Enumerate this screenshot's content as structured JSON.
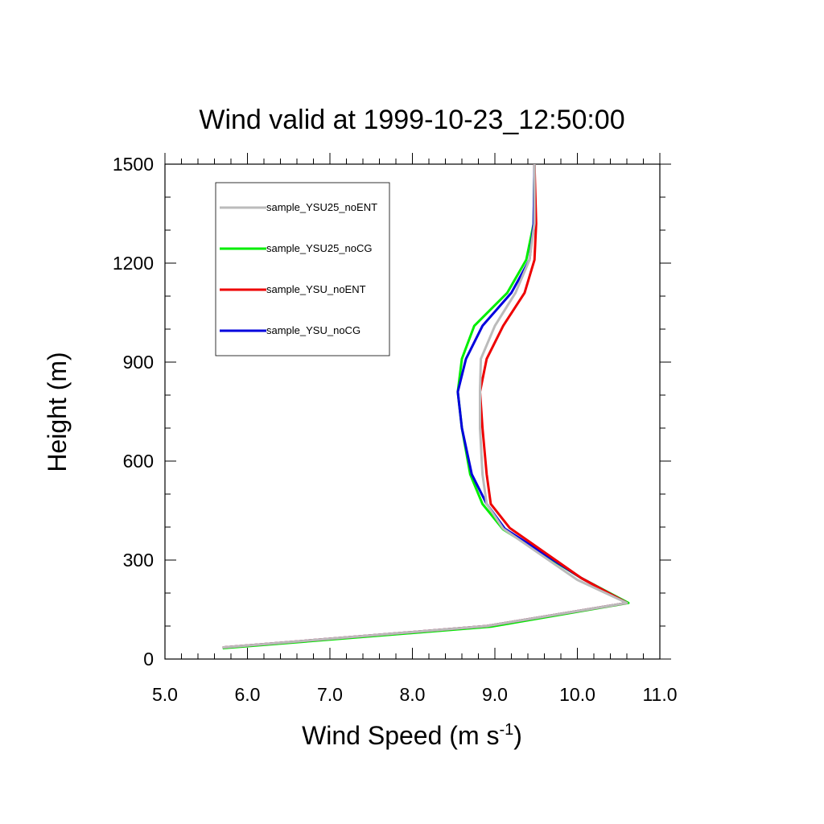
{
  "chart_data": {
    "type": "line",
    "title": "Wind valid at 1999-10-23_12:50:00",
    "xlabel": "Wind Speed (m s",
    "xlabel_superscript": "-1",
    "xlabel_suffix": ")",
    "ylabel": "Height (m)",
    "xlim": [
      5.0,
      11.0
    ],
    "ylim": [
      0,
      1500
    ],
    "x_ticks": [
      {
        "value": 5.0,
        "label": "5.0"
      },
      {
        "value": 6.0,
        "label": "6.0"
      },
      {
        "value": 7.0,
        "label": "7.0"
      },
      {
        "value": 8.0,
        "label": "8.0"
      },
      {
        "value": 9.0,
        "label": "9.0"
      },
      {
        "value": 10.0,
        "label": "10.0"
      },
      {
        "value": 11.0,
        "label": "11.0"
      }
    ],
    "y_ticks": [
      {
        "value": 0,
        "label": "0"
      },
      {
        "value": 300,
        "label": "300"
      },
      {
        "value": 600,
        "label": "600"
      },
      {
        "value": 900,
        "label": "900"
      },
      {
        "value": 1200,
        "label": "1200"
      },
      {
        "value": 1500,
        "label": "1500"
      }
    ],
    "grid": false,
    "legend_position": "top-left",
    "series": [
      {
        "name": "sample_YSU25_noENT",
        "color": "#bbbbbb",
        "x": [
          5.7,
          8.9,
          10.6,
          10.0,
          9.1,
          8.9,
          8.85,
          8.82,
          8.82,
          8.83,
          9.0,
          9.25,
          9.42,
          9.48,
          9.48
        ],
        "y": [
          35,
          100,
          170,
          240,
          395,
          470,
          560,
          700,
          810,
          910,
          1010,
          1110,
          1210,
          1320,
          1500
        ]
      },
      {
        "name": "sample_YSU25_noCG",
        "color": "#00ee00",
        "x": [
          5.7,
          8.95,
          10.62,
          10.05,
          9.1,
          8.85,
          8.7,
          8.6,
          8.55,
          8.6,
          8.75,
          9.15,
          9.38,
          9.47,
          9.48
        ],
        "y": [
          33,
          98,
          170,
          245,
          393,
          470,
          560,
          700,
          810,
          910,
          1010,
          1110,
          1210,
          1320,
          1500
        ]
      },
      {
        "name": "sample_YSU_noENT",
        "color": "#ee0000",
        "x": [
          5.7,
          8.9,
          10.6,
          10.05,
          9.18,
          8.95,
          8.9,
          8.85,
          8.82,
          8.9,
          9.1,
          9.36,
          9.48,
          9.5,
          9.48
        ],
        "y": [
          35,
          100,
          170,
          245,
          397,
          470,
          560,
          700,
          810,
          910,
          1010,
          1110,
          1210,
          1320,
          1500
        ]
      },
      {
        "name": "sample_YSU_noCG",
        "color": "#0000dd",
        "x": [
          5.7,
          8.9,
          10.6,
          10.05,
          9.12,
          8.9,
          8.72,
          8.6,
          8.55,
          8.65,
          8.85,
          9.2,
          9.42,
          9.47,
          9.48
        ],
        "y": [
          35,
          100,
          170,
          245,
          395,
          470,
          560,
          700,
          810,
          910,
          1010,
          1110,
          1210,
          1320,
          1500
        ]
      }
    ]
  }
}
